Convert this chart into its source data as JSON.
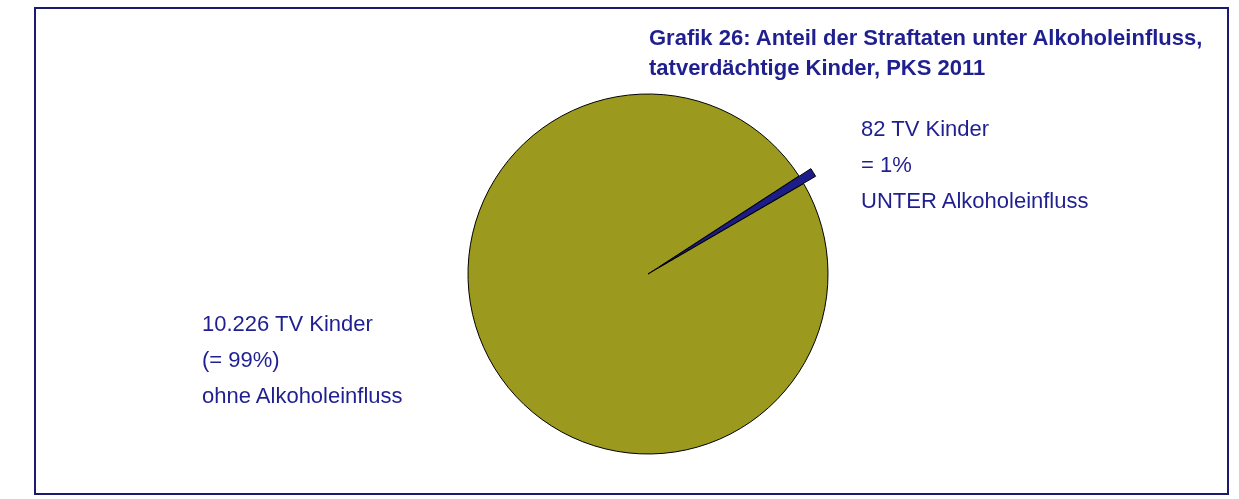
{
  "chart_data": {
    "type": "pie",
    "title": "Grafik 26: Anteil der Straftaten unter Alkoholeinfluss,\ntatverdächtige Kinder, PKS 2011",
    "categories": [
      "UNTER Alkoholeinfluss",
      "ohne Alkoholeinfluss"
    ],
    "values": [
      82,
      10226
    ],
    "colors": [
      "#1c1c8a",
      "#9c9a1e"
    ],
    "value_labels": [
      "82 TV Kinder\n= 1%",
      "10.226 TV Kinder\n(= 99%)"
    ],
    "legend": false
  }
}
